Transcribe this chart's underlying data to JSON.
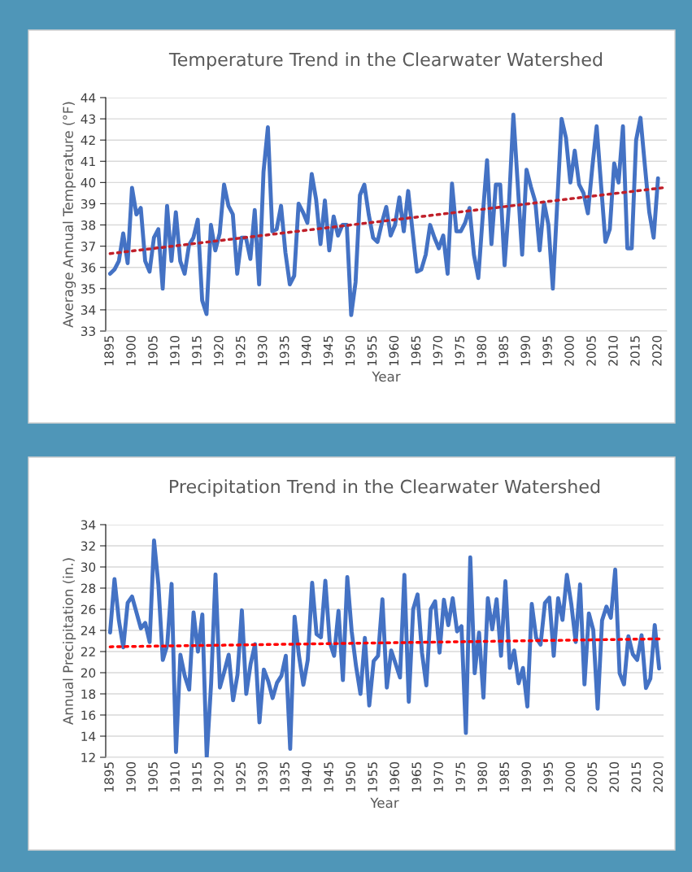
{
  "chart_data": [
    {
      "type": "line",
      "title": "Temperature Trend in the Clearwater Watershed",
      "xlabel": "Year",
      "ylabel": "Average Annual Temperature (°F)",
      "x": [
        1895,
        1896,
        1897,
        1898,
        1899,
        1900,
        1901,
        1902,
        1903,
        1904,
        1905,
        1906,
        1907,
        1908,
        1909,
        1910,
        1911,
        1912,
        1913,
        1914,
        1915,
        1916,
        1917,
        1918,
        1919,
        1920,
        1921,
        1922,
        1923,
        1924,
        1925,
        1926,
        1927,
        1928,
        1929,
        1930,
        1931,
        1932,
        1933,
        1934,
        1935,
        1936,
        1937,
        1938,
        1939,
        1940,
        1941,
        1942,
        1943,
        1944,
        1945,
        1946,
        1947,
        1948,
        1949,
        1950,
        1951,
        1952,
        1953,
        1954,
        1955,
        1956,
        1957,
        1958,
        1959,
        1960,
        1961,
        1962,
        1963,
        1964,
        1965,
        1966,
        1967,
        1968,
        1969,
        1970,
        1971,
        1972,
        1973,
        1974,
        1975,
        1976,
        1977,
        1978,
        1979,
        1980,
        1981,
        1982,
        1983,
        1984,
        1985,
        1986,
        1987,
        1988,
        1989,
        1990,
        1991,
        1992,
        1993,
        1994,
        1995,
        1996,
        1997,
        1998,
        1999,
        2000,
        2001,
        2002,
        2003,
        2004,
        2005,
        2006,
        2007,
        2008,
        2009,
        2010,
        2011,
        2012,
        2013,
        2014,
        2015,
        2016,
        2017,
        2018,
        2019,
        2020
      ],
      "series": [
        {
          "color": "#4472c4",
          "line_style": "solid",
          "values": [
            35.7,
            35.9,
            36.3,
            37.6,
            36.2,
            39.75,
            38.5,
            38.8,
            36.3,
            35.8,
            37.4,
            37.8,
            35.0,
            38.9,
            36.3,
            38.6,
            36.3,
            35.7,
            37.05,
            37.4,
            38.25,
            34.45,
            33.8,
            38.0,
            36.8,
            37.6,
            39.9,
            38.9,
            38.5,
            35.7,
            37.4,
            37.4,
            36.4,
            38.7,
            35.2,
            40.5,
            42.6,
            37.7,
            37.8,
            38.9,
            36.7,
            35.2,
            35.6,
            39.0,
            38.6,
            38.1,
            40.4,
            39.2,
            37.1,
            39.15,
            36.8,
            38.4,
            37.5,
            38.0,
            38.0,
            33.75,
            35.3,
            39.4,
            39.9,
            38.5,
            37.4,
            37.2,
            38.1,
            38.85,
            37.5,
            38.0,
            39.3,
            37.7,
            39.6,
            37.7,
            35.8,
            35.9,
            36.6,
            38.0,
            37.4,
            36.9,
            37.5,
            35.7,
            39.95,
            37.7,
            37.7,
            38.1,
            38.8,
            36.6,
            35.5,
            38.4,
            41.05,
            37.1,
            39.9,
            39.9,
            36.1,
            39.0,
            43.2,
            39.9,
            36.6,
            40.6,
            39.8,
            39.1,
            36.8,
            39.05,
            38.0,
            35.0,
            39.0,
            43.0,
            42.1,
            40.0,
            41.5,
            39.9,
            39.5,
            38.55,
            40.7,
            42.65,
            39.9,
            37.2,
            37.8,
            40.9,
            40.0,
            42.65,
            36.9,
            36.9,
            42.0,
            43.05,
            40.8,
            38.6,
            37.4,
            40.2
          ]
        },
        {
          "color": "#c0202a",
          "line_style": "dotted",
          "x": [
            1895,
            2021
          ],
          "values": [
            36.65,
            39.75
          ]
        }
      ],
      "xlim": [
        1894,
        2022
      ],
      "xticks": [
        1895,
        1900,
        1905,
        1910,
        1915,
        1920,
        1925,
        1930,
        1935,
        1940,
        1945,
        1950,
        1955,
        1960,
        1965,
        1970,
        1975,
        1980,
        1985,
        1990,
        1995,
        2000,
        2005,
        2010,
        2015,
        2020
      ],
      "ylim": [
        33,
        44
      ],
      "yticks": [
        33,
        34,
        35,
        36,
        37,
        38,
        39,
        40,
        41,
        42,
        43,
        44
      ],
      "grid": "y",
      "marker": "none"
    },
    {
      "type": "line",
      "title": "Precipitation Trend in the Clearwater Watershed",
      "xlabel": "Year",
      "ylabel": "Annual Precipitation (in.)",
      "x": [
        1895,
        1896,
        1897,
        1898,
        1899,
        1900,
        1901,
        1902,
        1903,
        1904,
        1905,
        1906,
        1907,
        1908,
        1909,
        1910,
        1911,
        1912,
        1913,
        1914,
        1915,
        1916,
        1917,
        1918,
        1919,
        1920,
        1921,
        1922,
        1923,
        1924,
        1925,
        1926,
        1927,
        1928,
        1929,
        1930,
        1931,
        1932,
        1933,
        1934,
        1935,
        1936,
        1937,
        1938,
        1939,
        1940,
        1941,
        1942,
        1943,
        1944,
        1945,
        1946,
        1947,
        1948,
        1949,
        1950,
        1951,
        1952,
        1953,
        1954,
        1955,
        1956,
        1957,
        1958,
        1959,
        1960,
        1961,
        1962,
        1963,
        1964,
        1965,
        1966,
        1967,
        1968,
        1969,
        1970,
        1971,
        1972,
        1973,
        1974,
        1975,
        1976,
        1977,
        1978,
        1979,
        1980,
        1981,
        1982,
        1983,
        1984,
        1985,
        1986,
        1987,
        1988,
        1989,
        1990,
        1991,
        1992,
        1993,
        1994,
        1995,
        1996,
        1997,
        1998,
        1999,
        2000,
        2001,
        2002,
        2003,
        2004,
        2005,
        2006,
        2007,
        2008,
        2009,
        2010,
        2011,
        2012,
        2013,
        2014,
        2015,
        2016,
        2017,
        2018,
        2019,
        2020
      ],
      "series": [
        {
          "color": "#4472c4",
          "line_style": "solid",
          "values": [
            23.8,
            28.85,
            24.95,
            22.4,
            26.6,
            27.2,
            25.7,
            24.2,
            24.7,
            22.9,
            32.5,
            28.3,
            21.2,
            22.6,
            28.4,
            12.5,
            21.7,
            19.7,
            18.4,
            25.7,
            22.0,
            25.5,
            12.0,
            19.0,
            29.3,
            18.6,
            20.1,
            21.7,
            17.4,
            19.8,
            25.9,
            18.0,
            20.85,
            22.7,
            15.3,
            20.3,
            19.2,
            17.6,
            19.05,
            19.7,
            21.6,
            12.8,
            25.3,
            21.6,
            18.85,
            21.2,
            28.5,
            23.65,
            23.35,
            28.7,
            22.9,
            21.6,
            25.85,
            19.3,
            29.05,
            23.9,
            20.6,
            18.0,
            23.3,
            16.9,
            21.1,
            21.6,
            26.95,
            18.6,
            22.1,
            20.85,
            19.55,
            29.25,
            17.25,
            26.0,
            27.4,
            21.9,
            18.8,
            26.0,
            26.75,
            21.9,
            26.9,
            24.5,
            27.05,
            23.9,
            24.4,
            14.3,
            30.9,
            19.95,
            23.8,
            17.65,
            27.05,
            24.1,
            26.95,
            21.6,
            28.65,
            20.45,
            22.1,
            19.0,
            20.45,
            16.8,
            26.5,
            23.3,
            22.65,
            26.6,
            27.1,
            21.6,
            27.05,
            25.0,
            29.25,
            26.5,
            22.9,
            28.35,
            18.9,
            25.6,
            24.05,
            16.6,
            24.95,
            26.25,
            25.2,
            29.75,
            19.95,
            18.9,
            23.45,
            21.75,
            21.2,
            23.55,
            18.55,
            19.45,
            24.5,
            20.4
          ]
        },
        {
          "color": "#ff0000",
          "line_style": "dotted",
          "x": [
            1895,
            2020
          ],
          "values": [
            22.45,
            23.2
          ]
        }
      ],
      "xlim": [
        1894,
        2021
      ],
      "xticks": [
        1895,
        1900,
        1905,
        1910,
        1915,
        1920,
        1925,
        1930,
        1935,
        1940,
        1945,
        1950,
        1955,
        1960,
        1965,
        1970,
        1975,
        1980,
        1985,
        1990,
        1995,
        2000,
        2005,
        2010,
        2015,
        2020
      ],
      "ylim": [
        12,
        34
      ],
      "yticks": [
        12,
        14,
        16,
        18,
        20,
        22,
        24,
        26,
        28,
        30,
        32,
        34
      ],
      "grid": "y",
      "marker": "none"
    }
  ]
}
